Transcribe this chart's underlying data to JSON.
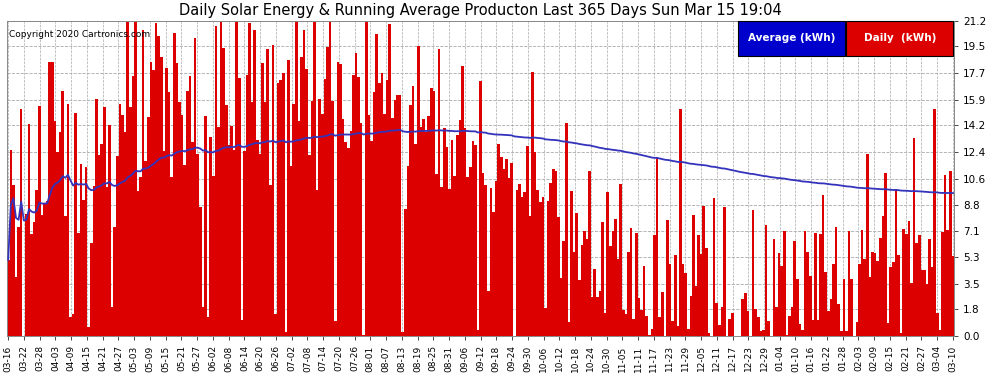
{
  "title": "Daily Solar Energy & Running Average Producton Last 365 Days Sun Mar 15 19:04",
  "copyright": "Copyright 2020 Cartronics.com",
  "yticks": [
    0.0,
    1.8,
    3.5,
    5.3,
    7.1,
    8.8,
    10.6,
    12.4,
    14.2,
    15.9,
    17.7,
    19.5,
    21.2
  ],
  "ylim": [
    0.0,
    21.2
  ],
  "bar_color": "#dd0000",
  "avg_color": "#3333bb",
  "background_color": "#ffffff",
  "plot_bg_color": "#ffffff",
  "grid_color": "#aaaaaa",
  "legend_avg_label": "Average (kWh)",
  "legend_daily_label": "Daily  (kWh)",
  "legend_avg_bg": "#0000cc",
  "legend_daily_bg": "#dd0000",
  "xtick_labels": [
    "03-16",
    "03-22",
    "03-28",
    "04-03",
    "04-09",
    "04-15",
    "04-21",
    "04-27",
    "05-03",
    "05-09",
    "05-15",
    "05-21",
    "05-27",
    "06-02",
    "06-08",
    "06-14",
    "06-20",
    "06-26",
    "07-02",
    "07-08",
    "07-14",
    "07-20",
    "07-26",
    "08-01",
    "08-07",
    "08-13",
    "08-19",
    "08-25",
    "08-31",
    "09-06",
    "09-12",
    "09-18",
    "09-24",
    "09-30",
    "10-06",
    "10-12",
    "10-18",
    "10-24",
    "10-30",
    "11-05",
    "11-11",
    "11-17",
    "11-23",
    "11-29",
    "12-05",
    "12-11",
    "12-17",
    "12-23",
    "12-29",
    "01-04",
    "01-10",
    "01-16",
    "01-22",
    "01-28",
    "02-03",
    "02-09",
    "02-15",
    "02-21",
    "02-27",
    "03-04",
    "03-10"
  ],
  "num_days": 365,
  "avg_value": 10.6
}
